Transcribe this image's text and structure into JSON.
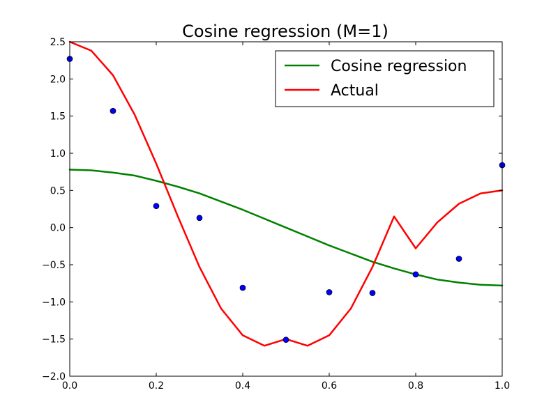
{
  "colors": {
    "background": "#ffffff",
    "axes": "#000000",
    "points": "#0000ff",
    "cosine_regression": "#008000",
    "actual": "#ff0000"
  },
  "chart_data": {
    "type": "line",
    "title": "Cosine regression (M=1)",
    "xlabel": "",
    "ylabel": "",
    "xlim": [
      0.0,
      1.0
    ],
    "ylim": [
      -2.0,
      2.5
    ],
    "grid": false,
    "legend_position": "top-right",
    "x_ticks": [
      "0.0",
      "0.2",
      "0.4",
      "0.6",
      "0.8",
      "1.0"
    ],
    "x_tick_values": [
      0.0,
      0.2,
      0.4,
      0.6,
      0.8,
      1.0
    ],
    "y_ticks": [
      "2.5",
      "2.0",
      "1.5",
      "1.0",
      "0.5",
      "0.0",
      "−0.5",
      "−1.0",
      "−1.5",
      "−2.0"
    ],
    "y_tick_values": [
      2.5,
      2.0,
      1.5,
      1.0,
      0.5,
      0.0,
      -0.5,
      -1.0,
      -1.5,
      -2.0
    ],
    "legend": [
      {
        "label": "Cosine regression",
        "color": "#008000"
      },
      {
        "label": "Actual",
        "color": "#ff0000"
      }
    ],
    "points": {
      "color": "#0000ff",
      "x": [
        0.0,
        0.1,
        0.2,
        0.3,
        0.4,
        0.5,
        0.6,
        0.7,
        0.8,
        0.9,
        1.0
      ],
      "y": [
        2.27,
        1.57,
        0.29,
        0.13,
        -0.81,
        -1.51,
        -0.87,
        -0.88,
        -0.63,
        -0.42,
        0.84
      ]
    },
    "series": [
      {
        "name": "Cosine regression",
        "color": "#008000",
        "x": [
          0.0,
          0.05,
          0.1,
          0.15,
          0.2,
          0.25,
          0.3,
          0.35,
          0.4,
          0.45,
          0.5,
          0.55,
          0.6,
          0.65,
          0.7,
          0.75,
          0.8,
          0.85,
          0.9,
          0.95,
          1.0
        ],
        "y": [
          0.78,
          0.77,
          0.74,
          0.7,
          0.63,
          0.55,
          0.46,
          0.35,
          0.24,
          0.12,
          0.0,
          -0.12,
          -0.24,
          -0.35,
          -0.46,
          -0.55,
          -0.63,
          -0.7,
          -0.74,
          -0.77,
          -0.78
        ]
      },
      {
        "name": "Actual",
        "color": "#ff0000",
        "x": [
          0.0,
          0.05,
          0.1,
          0.15,
          0.2,
          0.25,
          0.3,
          0.35,
          0.4,
          0.45,
          0.5,
          0.55,
          0.6,
          0.65,
          0.7,
          0.75,
          0.8,
          0.85,
          0.9,
          0.95,
          1.0
        ],
        "y": [
          2.5,
          2.38,
          2.05,
          1.52,
          0.86,
          0.15,
          -0.53,
          -1.09,
          -1.45,
          -1.59,
          -1.5,
          -1.59,
          -1.45,
          -1.09,
          -0.53,
          0.15,
          -0.28,
          0.07,
          0.32,
          0.46,
          0.5
        ]
      }
    ]
  }
}
